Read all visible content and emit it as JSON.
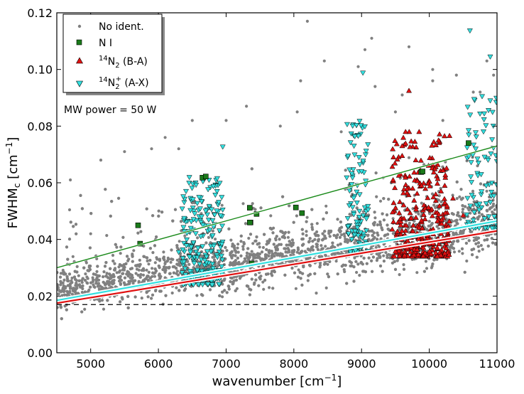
{
  "chart_data": {
    "type": "scatter",
    "title": "",
    "xlabel": "wavenumber [cm",
    "xlabel_sup": "−1",
    "xlabel_end": "]",
    "ylabel": "FWHM",
    "ylabel_sub": "c",
    "ylabel_unit": " [cm",
    "ylabel_sup": "−1",
    "ylabel_end": "]",
    "xlim": [
      4500,
      11000
    ],
    "ylim": [
      0.0,
      0.12
    ],
    "x_ticks": [
      5000,
      6000,
      7000,
      8000,
      9000,
      10000,
      11000
    ],
    "x_tick_labels": [
      "5000",
      "6000",
      "7000",
      "8000",
      "9000",
      "10000",
      "11000"
    ],
    "y_ticks": [
      0.0,
      0.02,
      0.04,
      0.06,
      0.08,
      0.1,
      0.12
    ],
    "y_tick_labels": [
      "0.00",
      "0.02",
      "0.04",
      "0.06",
      "0.08",
      "0.10",
      "0.12"
    ],
    "annotation": "MW power = 50 W",
    "legend": {
      "position": "top-left",
      "entries": [
        {
          "id": "noident",
          "label": "No ident.",
          "marker": "circle",
          "color": "#808080"
        },
        {
          "id": "ni",
          "label": "N I",
          "marker": "square",
          "color": "#1a7a1a"
        },
        {
          "id": "n2ba",
          "label_pre": "14",
          "label_main": "N",
          "label_sub": "2",
          "label_post": " (B-A)",
          "marker": "triangle-up",
          "color": "#e01010"
        },
        {
          "id": "n2ax",
          "label_pre": "14",
          "label_main": "N",
          "label_sub": "2",
          "label_sup": "+",
          "label_post": " (A-X)",
          "marker": "triangle-down",
          "color": "#33e0e0"
        }
      ]
    },
    "fit_lines": [
      {
        "name": "N I fit",
        "color": "#1a8a1a",
        "x": [
          4500,
          11000
        ],
        "y": [
          0.03,
          0.073
        ]
      },
      {
        "name": "14N2+ (A-X) fit",
        "color": "#33e0e0",
        "x": [
          4500,
          11000
        ],
        "y": [
          0.0185,
          0.0465
        ]
      },
      {
        "name": "14N2 (B-A) fit",
        "color": "#e01010",
        "x": [
          4500,
          11000
        ],
        "y": [
          0.0175,
          0.043
        ]
      }
    ],
    "reference_line": {
      "name": "instrumental limit",
      "y": 0.017,
      "style": "dashed",
      "color": "#000000"
    },
    "series": [
      {
        "name": "No ident.",
        "description_of_distribution": "dense grey band",
        "color": "#808080",
        "band": {
          "x_range": [
            4500,
            11000
          ],
          "center_start": 0.022,
          "center_end": 0.045,
          "n_points": 3200
        },
        "outliers": [
          [
            7300,
            0.087
          ],
          [
            8050,
            0.085
          ],
          [
            8200,
            0.117
          ],
          [
            8450,
            0.103
          ],
          [
            8100,
            0.096
          ],
          [
            8950,
            0.101
          ],
          [
            9050,
            0.107
          ],
          [
            9200,
            0.094
          ],
          [
            10400,
            0.098
          ],
          [
            10750,
            0.092
          ],
          [
            9600,
            0.091
          ],
          [
            10050,
            0.096
          ],
          [
            9700,
            0.108
          ],
          [
            7000,
            0.082
          ],
          [
            6500,
            0.082
          ],
          [
            10050,
            0.1
          ],
          [
            10850,
            0.103
          ],
          [
            6100,
            0.076
          ],
          [
            7800,
            0.08
          ],
          [
            8700,
            0.078
          ],
          [
            9500,
            0.085
          ],
          [
            10200,
            0.082
          ],
          [
            10650,
            0.092
          ],
          [
            4700,
            0.061
          ],
          [
            5150,
            0.068
          ],
          [
            5500,
            0.071
          ],
          [
            5900,
            0.072
          ],
          [
            6300,
            0.072
          ],
          [
            10950,
            0.098
          ],
          [
            9150,
            0.111
          ]
        ]
      },
      {
        "name": "N I",
        "color": "#1a7a1a",
        "x": [
          5700,
          5730,
          6650,
          6700,
          7350,
          7360,
          7380,
          7450,
          8030,
          8120,
          9880,
          9900,
          10580,
          7350
        ],
        "y": [
          0.045,
          0.0385,
          0.0618,
          0.0622,
          0.0512,
          0.046,
          0.0315,
          0.049,
          0.0513,
          0.0493,
          0.0638,
          0.064,
          0.074,
          0.046
        ]
      },
      {
        "name": "14N2 (B-A)",
        "color": "#e01010",
        "cluster": {
          "x_range": [
            9450,
            10300
          ],
          "y_range": [
            0.034,
            0.078
          ],
          "n_points": 330
        },
        "extra": [
          [
            9700,
            0.0925
          ],
          [
            9650,
            0.078
          ],
          [
            9850,
            0.078
          ],
          [
            10350,
            0.0545
          ],
          [
            10500,
            0.0485
          ],
          [
            9600,
            0.073
          ],
          [
            9800,
            0.068
          ],
          [
            10200,
            0.0395
          ],
          [
            10250,
            0.0405
          ]
        ]
      },
      {
        "name": "14N2+ (A-X)",
        "color": "#33e0e0",
        "clusters": [
          {
            "x_range": [
              6350,
              6950
            ],
            "y_range": [
              0.024,
              0.062
            ],
            "n_points": 230
          },
          {
            "x_range": [
              8780,
              9100
            ],
            "y_range": [
              0.035,
              0.082
            ],
            "n_points": 110
          },
          {
            "x_range": [
              10550,
              11000
            ],
            "y_range": [
              0.044,
              0.09
            ],
            "n_points": 90
          }
        ],
        "extra": [
          [
            6950,
            0.0727
          ],
          [
            9020,
            0.0988
          ],
          [
            10600,
            0.1137
          ],
          [
            10900,
            0.1045
          ],
          [
            10780,
            0.0905
          ],
          [
            10900,
            0.089
          ],
          [
            6300,
            0.0355
          ],
          [
            6380,
            0.0475
          ]
        ]
      }
    ]
  }
}
